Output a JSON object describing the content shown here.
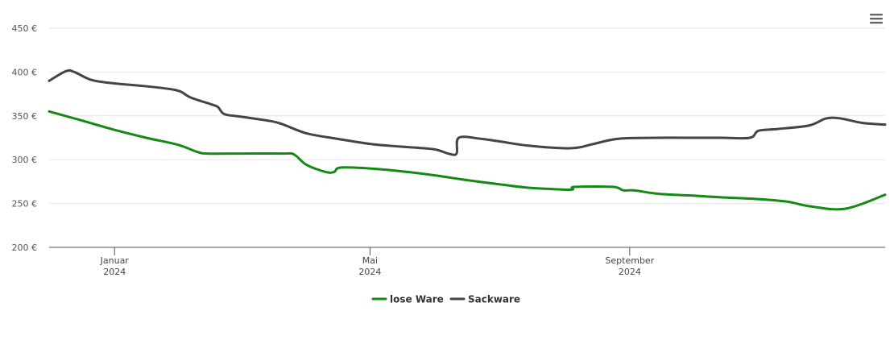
{
  "chart_data": {
    "type": "line",
    "title": "",
    "xlabel": "",
    "ylabel": "",
    "x_range": [
      "2023-12-01",
      "2024-12-31"
    ],
    "ylim": [
      200,
      450
    ],
    "yticks": [
      200,
      250,
      300,
      350,
      400,
      450
    ],
    "ytick_labels": [
      "200 €",
      "250 €",
      "300 €",
      "350 €",
      "400 €",
      "450 €"
    ],
    "xticks": [
      {
        "date": "2024-01-01",
        "label": "Januar",
        "sublabel": "2024"
      },
      {
        "date": "2024-05-01",
        "label": "Mai",
        "sublabel": "2024"
      },
      {
        "date": "2024-09-01",
        "label": "September",
        "sublabel": "2024"
      }
    ],
    "grid": true,
    "legend_position": "bottom-center",
    "series": [
      {
        "name": "lose Ware",
        "color": "#138a13",
        "points": [
          [
            "2023-12-01",
            355
          ],
          [
            "2023-12-16",
            345
          ],
          [
            "2024-01-01",
            334
          ],
          [
            "2024-01-16",
            325
          ],
          [
            "2024-01-31",
            317
          ],
          [
            "2024-02-09",
            309
          ],
          [
            "2024-02-14",
            307
          ],
          [
            "2024-03-01",
            307
          ],
          [
            "2024-03-21",
            307
          ],
          [
            "2024-03-26",
            306
          ],
          [
            "2024-04-01",
            294
          ],
          [
            "2024-04-10",
            286
          ],
          [
            "2024-04-14",
            286
          ],
          [
            "2024-04-17",
            291
          ],
          [
            "2024-05-01",
            290
          ],
          [
            "2024-05-15",
            287
          ],
          [
            "2024-06-01",
            282
          ],
          [
            "2024-06-15",
            277
          ],
          [
            "2024-07-01",
            272
          ],
          [
            "2024-07-15",
            268
          ],
          [
            "2024-07-31",
            266
          ],
          [
            "2024-08-05",
            266
          ],
          [
            "2024-08-06",
            269
          ],
          [
            "2024-08-24",
            269
          ],
          [
            "2024-08-29",
            265
          ],
          [
            "2024-09-03",
            265
          ],
          [
            "2024-09-15",
            261
          ],
          [
            "2024-10-01",
            259
          ],
          [
            "2024-10-15",
            257
          ],
          [
            "2024-11-01",
            255
          ],
          [
            "2024-11-15",
            252
          ],
          [
            "2024-11-25",
            247
          ],
          [
            "2024-12-12",
            244
          ],
          [
            "2024-12-31",
            260
          ]
        ]
      },
      {
        "name": "Sackware",
        "color": "#434348",
        "points": [
          [
            "2023-12-01",
            390
          ],
          [
            "2023-12-09",
            401
          ],
          [
            "2023-12-13",
            400
          ],
          [
            "2023-12-21",
            391
          ],
          [
            "2024-01-01",
            387
          ],
          [
            "2024-01-15",
            384
          ],
          [
            "2024-01-26",
            381
          ],
          [
            "2024-02-01",
            378
          ],
          [
            "2024-02-06",
            371
          ],
          [
            "2024-02-16",
            363
          ],
          [
            "2024-02-19",
            360
          ],
          [
            "2024-02-22",
            352
          ],
          [
            "2024-03-01",
            349
          ],
          [
            "2024-03-15",
            344
          ],
          [
            "2024-03-21",
            340
          ],
          [
            "2024-04-01",
            330
          ],
          [
            "2024-04-15",
            324
          ],
          [
            "2024-05-01",
            318
          ],
          [
            "2024-05-15",
            315
          ],
          [
            "2024-05-31",
            312
          ],
          [
            "2024-06-07",
            307
          ],
          [
            "2024-06-11",
            307
          ],
          [
            "2024-06-12",
            325
          ],
          [
            "2024-06-22",
            324
          ],
          [
            "2024-07-01",
            321
          ],
          [
            "2024-07-15",
            316
          ],
          [
            "2024-08-01",
            313
          ],
          [
            "2024-08-08",
            314
          ],
          [
            "2024-08-15",
            318
          ],
          [
            "2024-08-27",
            324
          ],
          [
            "2024-09-15",
            325
          ],
          [
            "2024-10-01",
            325
          ],
          [
            "2024-10-15",
            325
          ],
          [
            "2024-10-28",
            325
          ],
          [
            "2024-11-01",
            333
          ],
          [
            "2024-11-10",
            335
          ],
          [
            "2024-11-25",
            339
          ],
          [
            "2024-12-03",
            347
          ],
          [
            "2024-12-10",
            347
          ],
          [
            "2024-12-20",
            342
          ],
          [
            "2024-12-31",
            340
          ]
        ]
      }
    ]
  }
}
